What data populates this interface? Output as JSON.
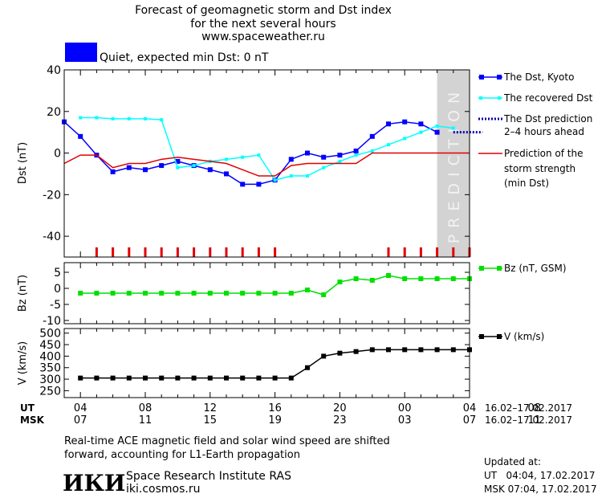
{
  "header": {
    "title_line1": "Forecast of geomagnetic storm and Dst index",
    "title_line2": "for the next several hours",
    "site": "www.spaceweather.ru",
    "status_color": "#0000ff",
    "status_text": "Quiet, expected min Dst: 0 nT"
  },
  "prediction_label": "PREDICTION",
  "legend": {
    "dst_kyoto": "The Dst, Kyoto",
    "dst_recovered": "The recovered Dst",
    "dst_prediction": [
      "The Dst prediction",
      "2–4 hours ahead"
    ],
    "storm_strength": [
      "Prediction of the",
      "storm strength",
      "(min Dst)"
    ],
    "bz": "Bz (nT, GSM)",
    "v": "V (km/s)"
  },
  "chart_data": [
    {
      "type": "line",
      "ylabel": "Dst (nT)",
      "ylim": [
        -50,
        40
      ],
      "yticks": [
        40,
        20,
        0,
        -20,
        -40
      ],
      "x_hours": [
        3,
        28
      ],
      "prediction_region_hours": [
        26,
        28
      ],
      "series": [
        {
          "name": "The Dst, Kyoto",
          "color": "#0000ff",
          "marker": "square",
          "x": [
            3,
            4,
            5,
            6,
            7,
            8,
            9,
            10,
            11,
            12,
            13,
            14,
            15,
            16,
            17,
            18,
            19,
            20,
            21,
            22,
            23,
            24,
            25,
            26
          ],
          "y": [
            15,
            8,
            -1,
            -9,
            -7,
            -8,
            -6,
            -4,
            -6,
            -8,
            -10,
            -15,
            -15,
            -13,
            -3,
            0,
            -2,
            -1,
            1,
            8,
            14,
            15,
            14,
            10
          ]
        },
        {
          "name": "The recovered Dst",
          "color": "#00ffff",
          "marker": "small-square",
          "x": [
            4,
            5,
            6,
            7,
            8,
            9,
            10,
            11,
            12,
            13,
            14,
            15,
            16,
            17,
            18,
            19,
            20,
            21,
            22,
            23,
            24,
            25,
            26,
            27
          ],
          "y": [
            17,
            17,
            16.5,
            16.5,
            16.5,
            16,
            -7,
            -6,
            -4,
            -3,
            -2,
            -1,
            -13,
            -11,
            -11,
            -7,
            -4,
            -1,
            1,
            4,
            7,
            10,
            13,
            12
          ]
        },
        {
          "name": "The Dst prediction 2–4 hours ahead",
          "color": "#0000b0",
          "style": "dotted",
          "x": [
            27,
            28.8
          ],
          "y": [
            10,
            10
          ]
        },
        {
          "name": "Prediction of the storm strength (min Dst)",
          "color": "#e00000",
          "x": [
            3,
            4,
            5,
            6,
            7,
            8,
            9,
            10,
            11,
            12,
            13,
            14,
            15,
            16,
            17,
            18,
            19,
            20,
            21,
            22,
            23,
            24,
            25,
            26,
            27,
            28
          ],
          "y": [
            -5,
            -1,
            -1,
            -7,
            -5,
            -5,
            -3,
            -2,
            -3,
            -4,
            -5,
            -8,
            -11,
            -11,
            -6,
            -5,
            -5,
            -5,
            -5,
            0,
            0,
            0,
            0,
            0,
            0,
            0
          ]
        }
      ],
      "storm_marks_hours": [
        5,
        6,
        7,
        8,
        9,
        10,
        11,
        12,
        13,
        14,
        15,
        16,
        23,
        24,
        25,
        26,
        27,
        28
      ]
    },
    {
      "type": "line",
      "ylabel": "Bz (nT)",
      "ylim": [
        -11,
        8
      ],
      "yticks": [
        5,
        0,
        -5,
        -10
      ],
      "series": [
        {
          "name": "Bz (nT, GSM)",
          "color": "#00e000",
          "marker": "square",
          "x": [
            4,
            5,
            6,
            7,
            8,
            9,
            10,
            11,
            12,
            13,
            14,
            15,
            16,
            17,
            18,
            19,
            20,
            21,
            22,
            23,
            24,
            25,
            26,
            27,
            28
          ],
          "y": [
            -1.5,
            -1.5,
            -1.5,
            -1.5,
            -1.5,
            -1.5,
            -1.5,
            -1.5,
            -1.5,
            -1.5,
            -1.5,
            -1.5,
            -1.5,
            -1.5,
            -0.5,
            -2,
            2,
            3,
            2.5,
            4,
            3,
            3,
            3,
            3,
            3
          ]
        }
      ]
    },
    {
      "type": "line",
      "ylabel": "V (km/s)",
      "ylim": [
        220,
        520
      ],
      "yticks": [
        500,
        450,
        400,
        350,
        300,
        250
      ],
      "series": [
        {
          "name": "V (km/s)",
          "color": "#000000",
          "marker": "square",
          "x": [
            4,
            5,
            6,
            7,
            8,
            9,
            10,
            11,
            12,
            13,
            14,
            15,
            16,
            17,
            18,
            19,
            20,
            21,
            22,
            23,
            24,
            25,
            26,
            27,
            28
          ],
          "y": [
            305,
            305,
            305,
            305,
            305,
            305,
            305,
            305,
            305,
            305,
            305,
            305,
            305,
            305,
            350,
            400,
            413,
            420,
            428,
            428,
            428,
            428,
            428,
            428,
            428
          ]
        }
      ]
    }
  ],
  "time_axis": {
    "ut_label": "UT",
    "msk_label": "MSK",
    "ut_ticks": [
      "04",
      "08",
      "12",
      "16",
      "20",
      "00",
      "04",
      "08"
    ],
    "msk_ticks": [
      "07",
      "11",
      "15",
      "19",
      "23",
      "03",
      "07",
      "11"
    ],
    "ut_range": "16.02–17.02.2017",
    "msk_range": "16.02–17.02.2017"
  },
  "footer": {
    "note_line1": "Real-time ACE magnetic field and solar wind speed are shifted",
    "note_line2": "forward, accounting for L1-Earth propagation",
    "logo_text": "ИКИ",
    "org_name": "Space Research Institute RAS",
    "org_url": "iki.cosmos.ru",
    "updated_label": "Updated at:",
    "updated_ut": "UT   04:04, 17.02.2017",
    "updated_msk": "MSK 07:04, 17.02.2017"
  }
}
